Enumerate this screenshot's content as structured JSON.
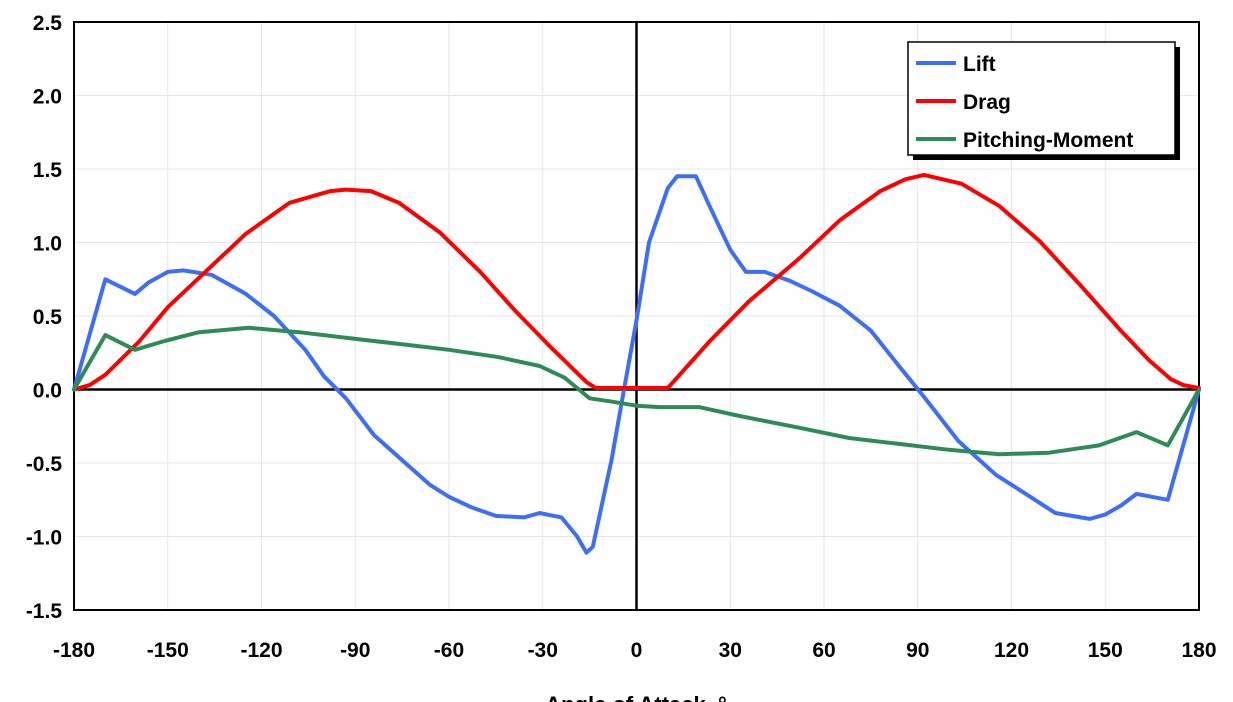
{
  "chart_data": {
    "type": "line",
    "title": "",
    "xlabel": "Angle of Attack, °",
    "ylabel": "",
    "xlim": [
      -180,
      180
    ],
    "ylim": [
      -1.5,
      2.5
    ],
    "xticks": [
      "-180",
      "-150",
      "-120",
      "-90",
      "-60",
      "-30",
      "0",
      "30",
      "60",
      "90",
      "120",
      "150",
      "180"
    ],
    "yticks": [
      "2.5",
      "2.0",
      "1.5",
      "1.0",
      "0.5",
      "0.0",
      "-0.5",
      "-1.0",
      "-1.5"
    ],
    "grid": true,
    "legend_position": "top-right",
    "series": [
      {
        "name": "Lift",
        "color": "#3d6ef5",
        "points": [
          [
            -180,
            0
          ],
          [
            -170,
            0.75
          ],
          [
            -160.5,
            0.65
          ],
          [
            -156,
            0.73
          ],
          [
            -150,
            0.8
          ],
          [
            -145,
            0.81
          ],
          [
            -136,
            0.78
          ],
          [
            -125,
            0.65
          ],
          [
            -116,
            0.5
          ],
          [
            -106,
            0.27
          ],
          [
            -100,
            0.09
          ],
          [
            -93,
            -0.06
          ],
          [
            -84,
            -0.31
          ],
          [
            -74,
            -0.5
          ],
          [
            -66,
            -0.65
          ],
          [
            -60,
            -0.73
          ],
          [
            -53,
            -0.8
          ],
          [
            -45,
            -0.86
          ],
          [
            -36,
            -0.87
          ],
          [
            -31,
            -0.84
          ],
          [
            -24,
            -0.87
          ],
          [
            -19,
            -1.0
          ],
          [
            -16,
            -1.11
          ],
          [
            -14,
            -1.07
          ],
          [
            -8,
            -0.48
          ],
          [
            -4,
            0.0
          ],
          [
            0,
            0.47
          ],
          [
            4,
            1.0
          ],
          [
            10,
            1.37
          ],
          [
            13,
            1.45
          ],
          [
            19,
            1.45
          ],
          [
            24,
            1.22
          ],
          [
            30,
            0.95
          ],
          [
            35,
            0.8
          ],
          [
            41,
            0.8
          ],
          [
            49,
            0.74
          ],
          [
            56,
            0.67
          ],
          [
            65,
            0.57
          ],
          [
            75,
            0.4
          ],
          [
            84,
            0.16
          ],
          [
            92,
            -0.05
          ],
          [
            103,
            -0.35
          ],
          [
            115,
            -0.58
          ],
          [
            126,
            -0.73
          ],
          [
            134,
            -0.84
          ],
          [
            145,
            -0.88
          ],
          [
            150,
            -0.85
          ],
          [
            155,
            -0.79
          ],
          [
            160,
            -0.71
          ],
          [
            170,
            -0.75
          ],
          [
            180,
            0
          ]
        ]
      },
      {
        "name": "Drag",
        "color": "#ff0000",
        "points": [
          [
            -180,
            0
          ],
          [
            -175,
            0.03
          ],
          [
            -170,
            0.1
          ],
          [
            -159,
            0.33
          ],
          [
            -150,
            0.56
          ],
          [
            -140,
            0.76
          ],
          [
            -130,
            0.96
          ],
          [
            -125,
            1.06
          ],
          [
            -111,
            1.27
          ],
          [
            -98,
            1.35
          ],
          [
            -93,
            1.36
          ],
          [
            -85,
            1.35
          ],
          [
            -76,
            1.27
          ],
          [
            -63,
            1.07
          ],
          [
            -50,
            0.8
          ],
          [
            -39,
            0.54
          ],
          [
            -28,
            0.3
          ],
          [
            -16,
            0.05
          ],
          [
            -13,
            0.01
          ],
          [
            10,
            0.01
          ],
          [
            23.5,
            0.33
          ],
          [
            36,
            0.6
          ],
          [
            52,
            0.89
          ],
          [
            65,
            1.15
          ],
          [
            78,
            1.35
          ],
          [
            86,
            1.43
          ],
          [
            92,
            1.46
          ],
          [
            104,
            1.4
          ],
          [
            116,
            1.25
          ],
          [
            129,
            1.01
          ],
          [
            142,
            0.71
          ],
          [
            155,
            0.4
          ],
          [
            164,
            0.2
          ],
          [
            171,
            0.07
          ],
          [
            175,
            0.03
          ],
          [
            180,
            0.01
          ]
        ]
      },
      {
        "name": "Pitching-Moment",
        "color": "#2e8b57",
        "points": [
          [
            -180,
            0
          ],
          [
            -170,
            0.37
          ],
          [
            -160.5,
            0.27
          ],
          [
            -151,
            0.33
          ],
          [
            -140,
            0.39
          ],
          [
            -124,
            0.42
          ],
          [
            -108,
            0.39
          ],
          [
            -92,
            0.35
          ],
          [
            -76,
            0.31
          ],
          [
            -60,
            0.27
          ],
          [
            -44,
            0.22
          ],
          [
            -31,
            0.16
          ],
          [
            -23,
            0.08
          ],
          [
            -15,
            -0.06
          ],
          [
            -8.5,
            -0.08
          ],
          [
            0,
            -0.11
          ],
          [
            7.5,
            -0.12
          ],
          [
            20,
            -0.12
          ],
          [
            33,
            -0.18
          ],
          [
            52,
            -0.26
          ],
          [
            68,
            -0.33
          ],
          [
            84,
            -0.37
          ],
          [
            100,
            -0.41
          ],
          [
            116,
            -0.44
          ],
          [
            132,
            -0.43
          ],
          [
            148,
            -0.38
          ],
          [
            160,
            -0.29
          ],
          [
            170,
            -0.38
          ],
          [
            180,
            0
          ]
        ]
      }
    ]
  }
}
